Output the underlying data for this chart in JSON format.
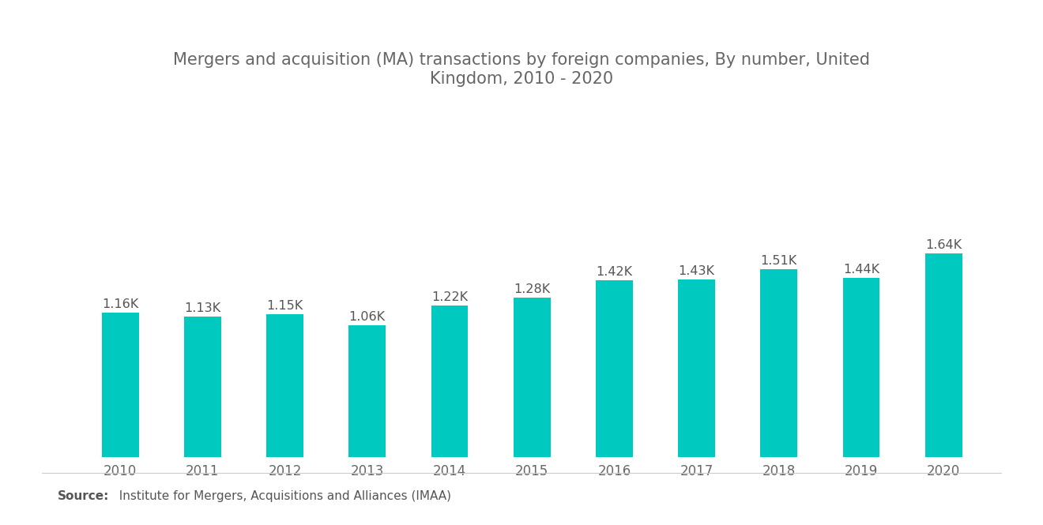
{
  "title": "Mergers and acquisition (MA) transactions by foreign companies, By number, United\nKingdom, 2010 - 2020",
  "years": [
    "2010",
    "2011",
    "2012",
    "2013",
    "2014",
    "2015",
    "2016",
    "2017",
    "2018",
    "2019",
    "2020"
  ],
  "values": [
    1160,
    1130,
    1150,
    1060,
    1220,
    1280,
    1420,
    1430,
    1510,
    1440,
    1640
  ],
  "labels": [
    "1.16K",
    "1.13K",
    "1.15K",
    "1.06K",
    "1.22K",
    "1.28K",
    "1.42K",
    "1.43K",
    "1.51K",
    "1.44K",
    "1.64K"
  ],
  "bar_color": "#00C9C0",
  "background_color": "#ffffff",
  "title_color": "#666666",
  "label_color": "#555555",
  "tick_color": "#666666",
  "source_bold": "Source:",
  "source_text": "  Institute for Mergers, Acquisitions and Alliances (IMAA)",
  "title_fontsize": 15,
  "label_fontsize": 11.5,
  "tick_fontsize": 12,
  "source_fontsize": 11,
  "ylim": [
    0,
    2200
  ],
  "bar_width": 0.45
}
